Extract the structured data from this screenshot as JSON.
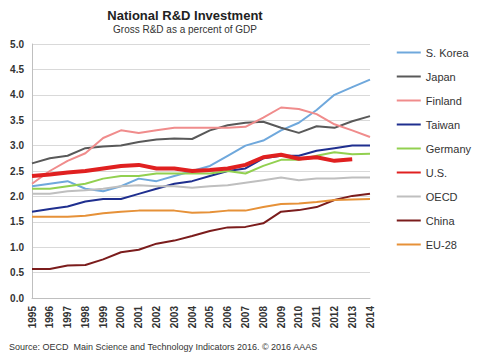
{
  "chart_data": {
    "type": "line",
    "title": "National R&D Investment",
    "subtitle": "Gross R&D as a percent of GDP",
    "source": "Source: OECD  Main Science and Technology Indicators 2016. © 2016 AAAS",
    "categories": [
      "1995",
      "1996",
      "1997",
      "1998",
      "1999",
      "2000",
      "2001",
      "2002",
      "2003",
      "2004",
      "2005",
      "2006",
      "2007",
      "2008",
      "2009",
      "2010",
      "2011",
      "2012",
      "2013",
      "2014"
    ],
    "ylim": [
      0,
      5
    ],
    "yticks": [
      {
        "value": 0,
        "label": "0.0"
      },
      0.5,
      {
        "value": 1,
        "label": "1.0"
      },
      1.5,
      {
        "value": 2,
        "label": "2.0"
      },
      2.5,
      {
        "value": 3,
        "label": "3.0"
      },
      3.5,
      {
        "value": 4,
        "label": "4.0"
      },
      4.5,
      {
        "value": 5,
        "label": "5.0"
      }
    ],
    "grid": true,
    "legend": "right",
    "series": [
      {
        "name": "S. Korea",
        "color": "#6fa8dc",
        "line_style": "solid",
        "values": [
          2.2,
          2.25,
          2.3,
          2.15,
          2.1,
          2.2,
          2.35,
          2.3,
          2.4,
          2.5,
          2.6,
          2.8,
          3.0,
          3.1,
          3.3,
          3.45,
          3.7,
          4.0,
          4.15,
          4.3
        ]
      },
      {
        "name": "Japan",
        "color": "#595959",
        "line_style": "solid",
        "values": [
          2.65,
          2.75,
          2.8,
          2.95,
          2.98,
          3.0,
          3.07,
          3.12,
          3.14,
          3.13,
          3.3,
          3.4,
          3.45,
          3.47,
          3.35,
          3.25,
          3.38,
          3.35,
          3.48,
          3.58
        ]
      },
      {
        "name": "Finland",
        "color": "#f08c8c",
        "line_style": "solid",
        "values": [
          2.25,
          2.5,
          2.7,
          2.85,
          3.15,
          3.3,
          3.25,
          3.3,
          3.35,
          3.35,
          3.35,
          3.35,
          3.37,
          3.55,
          3.75,
          3.72,
          3.62,
          3.42,
          3.3,
          3.17
        ]
      },
      {
        "name": "Taiwan",
        "color": "#1f2f8f",
        "line_style": "solid",
        "values": [
          1.7,
          1.75,
          1.8,
          1.9,
          1.95,
          1.95,
          2.05,
          2.15,
          2.25,
          2.3,
          2.4,
          2.5,
          2.55,
          2.75,
          2.8,
          2.8,
          2.9,
          2.95,
          3.0,
          3.0
        ]
      },
      {
        "name": "Germany",
        "color": "#92d050",
        "line_style": "solid",
        "values": [
          2.15,
          2.15,
          2.2,
          2.25,
          2.35,
          2.4,
          2.4,
          2.45,
          2.45,
          2.45,
          2.45,
          2.5,
          2.45,
          2.6,
          2.72,
          2.72,
          2.8,
          2.87,
          2.83,
          2.84
        ]
      },
      {
        "name": "U.S.",
        "color": "#e02020",
        "line_style": "bold",
        "values": [
          2.4,
          2.43,
          2.47,
          2.5,
          2.55,
          2.6,
          2.62,
          2.55,
          2.55,
          2.5,
          2.52,
          2.55,
          2.62,
          2.77,
          2.82,
          2.74,
          2.77,
          2.7,
          2.73,
          null
        ]
      },
      {
        "name": "OECD",
        "color": "#bfbfbf",
        "line_style": "solid",
        "values": [
          2.05,
          2.05,
          2.1,
          2.12,
          2.15,
          2.2,
          2.22,
          2.2,
          2.2,
          2.17,
          2.2,
          2.22,
          2.27,
          2.32,
          2.37,
          2.32,
          2.35,
          2.35,
          2.37,
          2.37
        ]
      },
      {
        "name": "China",
        "color": "#7b1c1c",
        "line_style": "solid",
        "values": [
          0.57,
          0.57,
          0.64,
          0.65,
          0.76,
          0.9,
          0.95,
          1.07,
          1.13,
          1.22,
          1.32,
          1.39,
          1.4,
          1.47,
          1.7,
          1.73,
          1.79,
          1.93,
          2.01,
          2.05
        ]
      },
      {
        "name": "EU-28",
        "color": "#e69138",
        "line_style": "solid",
        "values": [
          1.6,
          1.6,
          1.6,
          1.62,
          1.67,
          1.7,
          1.72,
          1.72,
          1.72,
          1.68,
          1.69,
          1.72,
          1.72,
          1.79,
          1.85,
          1.86,
          1.89,
          1.93,
          1.94,
          1.95
        ]
      }
    ]
  }
}
